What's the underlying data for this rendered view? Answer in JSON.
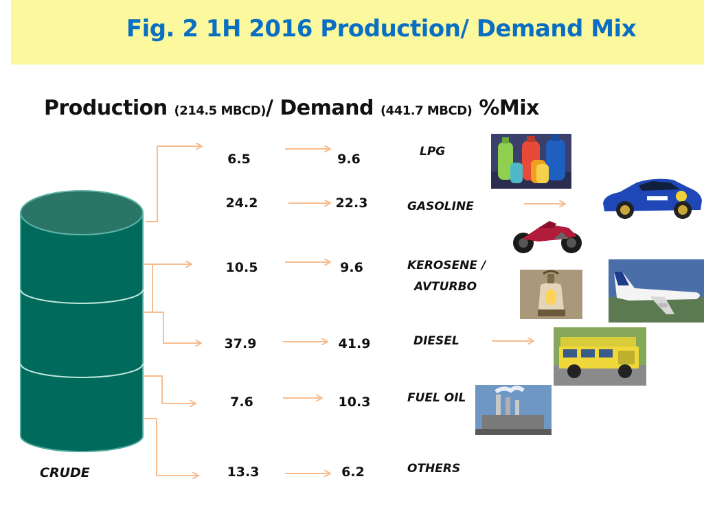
{
  "title": "Fig. 2  1H 2016 Production/ Demand Mix",
  "subtitle": {
    "part1": "Production ",
    "prod_total": "(214.5 MBCD)",
    "part2": "/ Demand ",
    "dem_total": "(441.7 MBCD)",
    "part3": " %Mix"
  },
  "source_label": "CRUDE",
  "rows": [
    {
      "production": "6.5",
      "demand": "9.6",
      "product": "LPG"
    },
    {
      "production": "24.2",
      "demand": "22.3",
      "product": "GASOLINE"
    },
    {
      "production": "10.5",
      "demand": "9.6",
      "product_line1": "KEROSENE /",
      "product_line2": "AVTURBO"
    },
    {
      "production": "37.9",
      "demand": "41.9",
      "product": "DIESEL"
    },
    {
      "production": "7.6",
      "demand": "10.3",
      "product": "FUEL OIL"
    },
    {
      "production": "13.3",
      "demand": "6.2",
      "product": "OTHERS"
    }
  ],
  "colors": {
    "banner": "#fcf89e",
    "title": "#0a6fc2",
    "barrel": "#006a5c",
    "arrow": "#f7bc8f"
  },
  "icons": [
    "lpg-cylinders-icon",
    "rally-car-icon",
    "motorcycle-icon",
    "lantern-icon",
    "airplane-icon",
    "jeepney-icon",
    "power-plant-icon"
  ]
}
